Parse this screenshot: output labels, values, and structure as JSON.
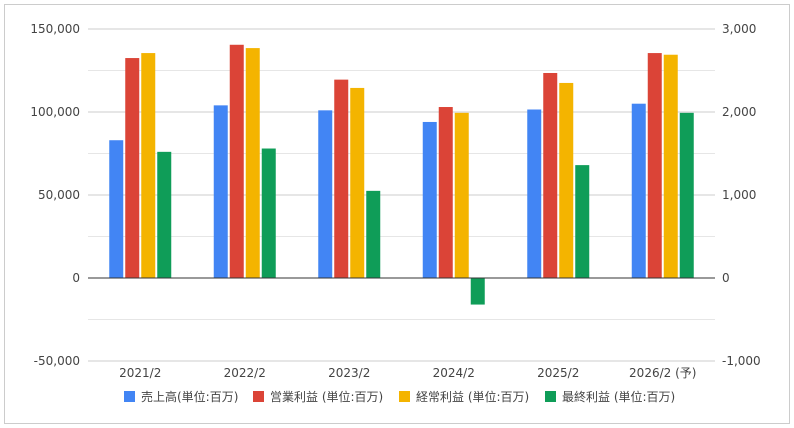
{
  "chart_data": {
    "type": "bar",
    "categories": [
      "2021/2",
      "2022/2",
      "2023/2",
      "2024/2",
      "2025/2",
      "2026/2 (予)"
    ],
    "series": [
      {
        "name": "売上高(単位:百万)",
        "axis": "left",
        "color": "#4285f4",
        "values": [
          83000,
          104000,
          101000,
          94000,
          101500,
          105000
        ]
      },
      {
        "name": "営業利益 (単位:百万)",
        "axis": "right",
        "color": "#db4437",
        "values": [
          2650,
          2810,
          2390,
          2060,
          2470,
          2710
        ]
      },
      {
        "name": "経常利益 (単位:百万)",
        "axis": "right",
        "color": "#f4b400",
        "values": [
          2710,
          2770,
          2290,
          1990,
          2350,
          2690
        ]
      },
      {
        "name": "最終利益 (単位:百万)",
        "axis": "right",
        "color": "#0f9d58",
        "values": [
          1520,
          1560,
          1050,
          -320,
          1360,
          1990
        ]
      }
    ],
    "left_axis": {
      "ylim": [
        -50000,
        150000
      ],
      "ticks": [
        "-50,000",
        "0",
        "50,000",
        "100,000",
        "150,000"
      ]
    },
    "right_axis": {
      "ylim": [
        -1000,
        3000
      ],
      "ticks": [
        "-1,000",
        "0",
        "1,000",
        "2,000",
        "3,000"
      ]
    },
    "grid": true,
    "legend_position": "bottom"
  }
}
